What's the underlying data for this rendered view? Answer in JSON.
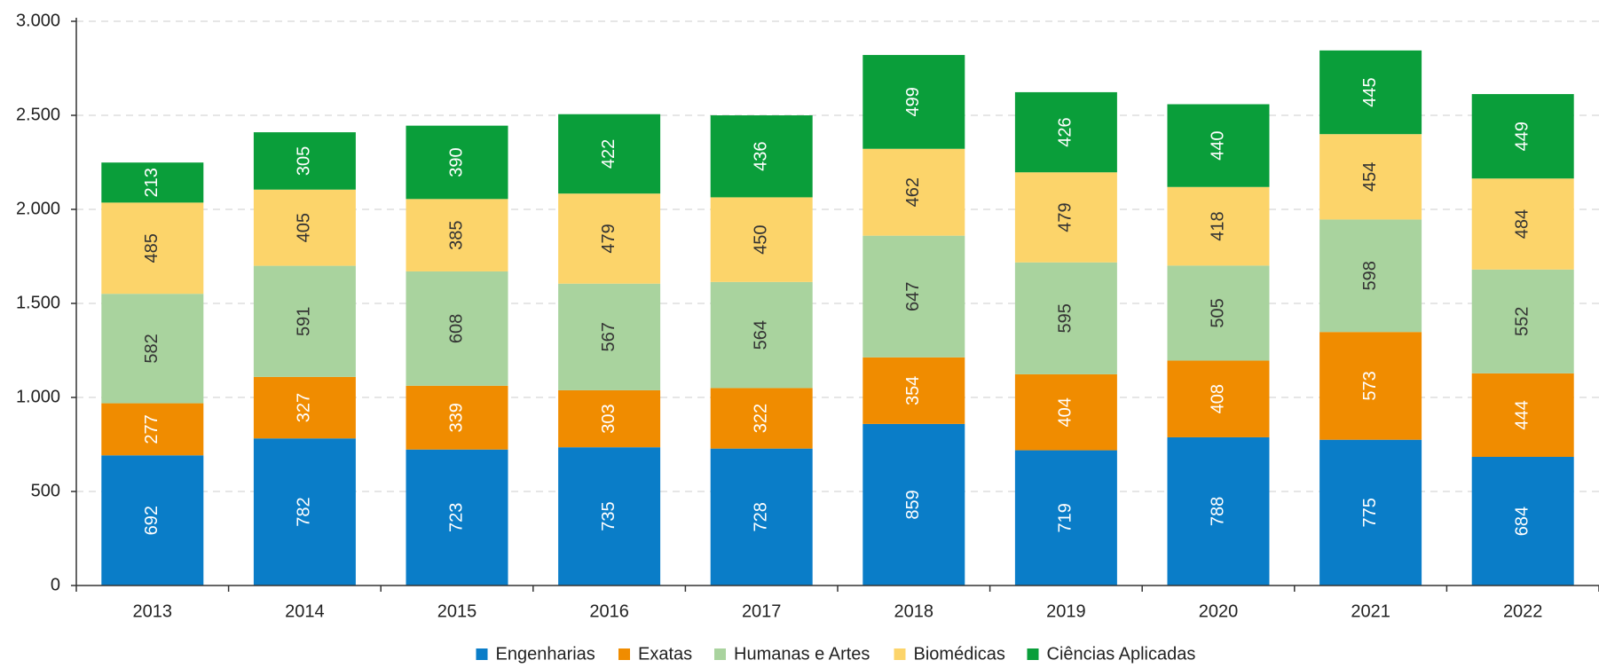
{
  "chart_data": {
    "type": "stacked_bar",
    "categories": [
      "2013",
      "2014",
      "2015",
      "2016",
      "2017",
      "2018",
      "2019",
      "2020",
      "2021",
      "2022"
    ],
    "series": [
      {
        "name": "Engenharias",
        "color": "#0a7dc8",
        "values": [
          692,
          782,
          723,
          735,
          728,
          859,
          719,
          788,
          775,
          684
        ]
      },
      {
        "name": "Exatas",
        "color": "#f08c00",
        "values": [
          277,
          327,
          339,
          303,
          322,
          354,
          404,
          408,
          573,
          444
        ]
      },
      {
        "name": "Humanas e Artes",
        "color": "#a9d39e",
        "values": [
          582,
          591,
          608,
          567,
          564,
          647,
          595,
          505,
          598,
          552
        ]
      },
      {
        "name": "Biomédicas",
        "color": "#fcd46a",
        "values": [
          485,
          405,
          385,
          479,
          450,
          462,
          479,
          418,
          454,
          484
        ]
      },
      {
        "name": "Ciências Aplicadas",
        "color": "#0a9e3a",
        "values": [
          213,
          305,
          390,
          422,
          436,
          499,
          426,
          440,
          445,
          449
        ]
      }
    ],
    "ylim": [
      0,
      3000
    ],
    "yticks": [
      0,
      500,
      {
        "value": 1000,
        "label": "1.000"
      },
      {
        "value": 1500,
        "label": "1.500"
      },
      {
        "value": 2000,
        "label": "2.000"
      },
      {
        "value": 2500,
        "label": "2.500"
      },
      {
        "value": 3000,
        "label": "3.000"
      }
    ],
    "grid": true,
    "legend": "bottom"
  }
}
